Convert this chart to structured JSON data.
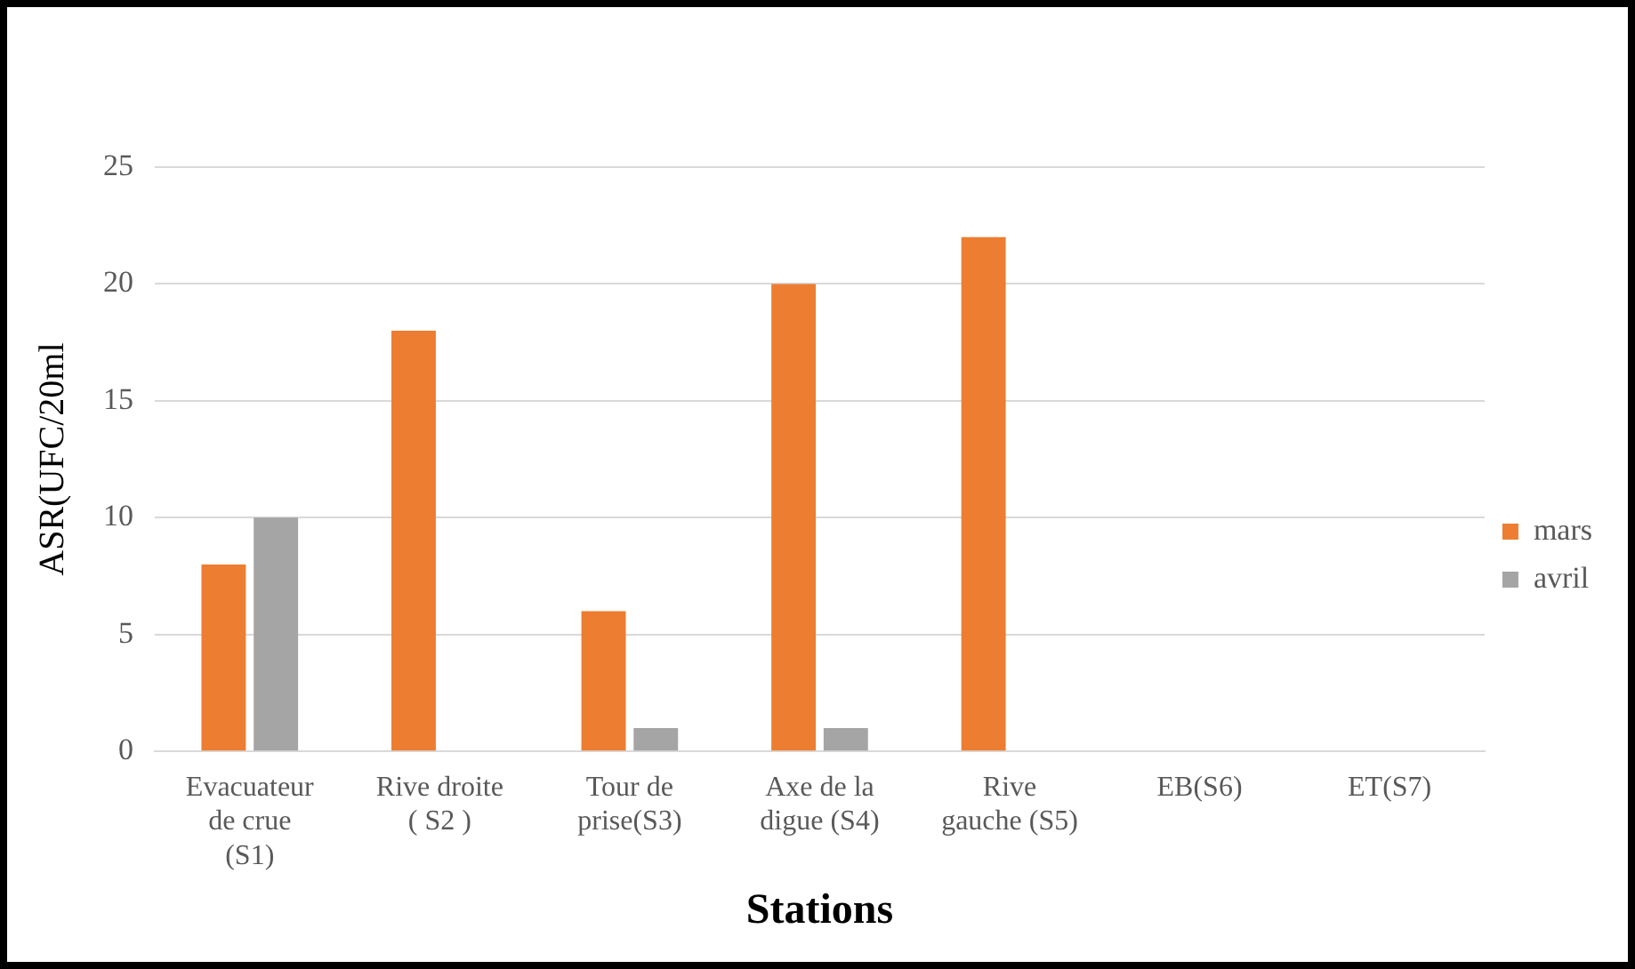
{
  "chart_data": {
    "type": "bar",
    "xlabel": "Stations",
    "ylabel": "ASR(UFC/20ml",
    "categories": [
      "Evacuateur\nde crue\n(S1)",
      "Rive droite\n( S2 )",
      "Tour de\nprise(S3)",
      "Axe de la\ndigue (S4)",
      "Rive\ngauche (S5)",
      "EB(S6)",
      "ET(S7)"
    ],
    "series": [
      {
        "name": "mars",
        "color": "#ed7d31",
        "values": [
          8,
          18,
          6,
          20,
          22,
          0,
          0
        ]
      },
      {
        "name": "avril",
        "color": "#a5a5a5",
        "values": [
          10,
          0,
          1,
          1,
          0,
          0,
          0
        ]
      }
    ],
    "ylim": [
      0,
      25
    ],
    "yticks": [
      0,
      5,
      10,
      15,
      20,
      25
    ],
    "grid": "y",
    "legend": "right"
  }
}
